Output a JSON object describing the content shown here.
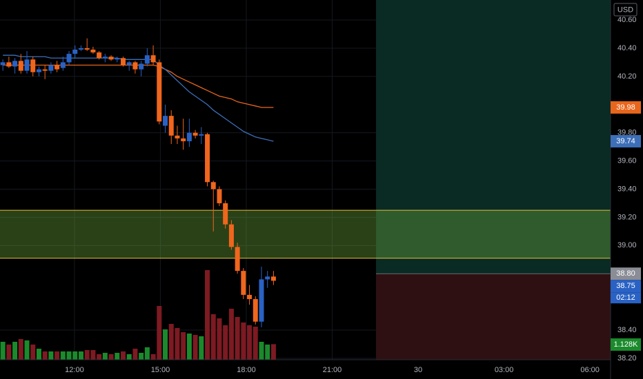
{
  "chart_data": {
    "type": "candlestick",
    "currency": "USD",
    "x": [
      9.5,
      9.71,
      9.92,
      10.13,
      10.34,
      10.55,
      10.76,
      10.97,
      11.18,
      11.39,
      11.6,
      11.81,
      12.02,
      12.23,
      12.44,
      12.65,
      12.86,
      13.07,
      13.28,
      13.49,
      13.7,
      13.91,
      14.12,
      14.33,
      14.54,
      14.75,
      14.96,
      15.17,
      15.38,
      15.59,
      15.8,
      16.01,
      16.22,
      16.43,
      16.64,
      16.85,
      17.06,
      17.27,
      17.48,
      17.69,
      17.9,
      18.11,
      18.32,
      18.53,
      18.74,
      18.95
    ],
    "open": [
      40.28,
      40.3,
      40.27,
      40.31,
      40.24,
      40.32,
      40.23,
      40.25,
      40.24,
      40.28,
      40.26,
      40.3,
      40.36,
      40.39,
      40.4,
      40.39,
      40.37,
      40.33,
      40.34,
      40.32,
      40.33,
      40.28,
      40.3,
      40.25,
      40.29,
      40.35,
      40.3,
      39.85,
      39.92,
      39.78,
      39.76,
      39.74,
      39.8,
      39.78,
      39.79,
      39.45,
      39.4,
      39.3,
      39.15,
      38.99,
      38.82,
      38.65,
      38.62,
      38.46,
      38.76,
      38.78
    ],
    "high": [
      40.32,
      40.34,
      40.33,
      40.36,
      40.38,
      40.34,
      40.27,
      40.28,
      40.3,
      40.31,
      40.34,
      40.38,
      40.42,
      40.42,
      40.47,
      40.41,
      40.38,
      40.36,
      40.35,
      40.34,
      40.34,
      40.31,
      40.31,
      40.31,
      40.4,
      40.42,
      40.32,
      40.0,
      39.96,
      39.85,
      39.9,
      39.9,
      39.82,
      39.84,
      39.8,
      39.46,
      39.42,
      39.32,
      39.18,
      39.02,
      38.84,
      38.72,
      38.64,
      38.85,
      38.82,
      38.82
    ],
    "low": [
      40.24,
      40.26,
      40.22,
      40.22,
      40.22,
      40.2,
      40.2,
      40.18,
      40.22,
      40.23,
      40.24,
      40.28,
      40.33,
      40.38,
      40.38,
      40.36,
      40.32,
      40.3,
      40.31,
      40.3,
      40.27,
      40.24,
      40.22,
      40.2,
      40.27,
      40.28,
      39.86,
      39.8,
      39.72,
      39.72,
      39.68,
      39.7,
      39.76,
      39.72,
      39.42,
      39.1,
      39.28,
      39.12,
      38.97,
      38.8,
      38.62,
      38.58,
      38.44,
      38.42,
      38.7,
      38.72
    ],
    "close": [
      40.3,
      40.27,
      40.31,
      40.24,
      40.32,
      40.23,
      40.25,
      40.24,
      40.28,
      40.25,
      40.3,
      40.36,
      40.39,
      40.4,
      40.39,
      40.37,
      40.33,
      40.34,
      40.32,
      40.33,
      40.28,
      40.3,
      40.25,
      40.29,
      40.35,
      40.3,
      39.88,
      39.92,
      39.78,
      39.76,
      39.74,
      39.8,
      39.78,
      39.79,
      39.45,
      39.4,
      39.3,
      39.15,
      38.99,
      38.82,
      38.65,
      38.62,
      38.46,
      38.76,
      38.78,
      38.75
    ],
    "up_color": "#2962c4",
    "down_color": "#f0661c",
    "volume": {
      "values": [
        1300,
        1100,
        1300,
        1500,
        1400,
        1100,
        800,
        600,
        600,
        600,
        600,
        600,
        600,
        600,
        700,
        700,
        400,
        500,
        400,
        500,
        600,
        400,
        800,
        500,
        900,
        400,
        3900,
        2200,
        2600,
        2300,
        2000,
        1900,
        1800,
        1700,
        6500,
        3300,
        3000,
        2500,
        3700,
        3100,
        2700,
        2500,
        2400,
        1300,
        1100,
        1128
      ],
      "value_labels": [
        null,
        null,
        null,
        null,
        null,
        null,
        null,
        null,
        null,
        null,
        null,
        null,
        null,
        null,
        null,
        null,
        null,
        null,
        null,
        null,
        null,
        null,
        null,
        null,
        null,
        null,
        null,
        null,
        null,
        null,
        null,
        null,
        null,
        null,
        null,
        null,
        null,
        null,
        null,
        null,
        null,
        null,
        null,
        null,
        null,
        "1.128K"
      ],
      "up_color": "#1b8a2c",
      "down_color": "#7d1a22",
      "label_color": "#1b8a2c"
    },
    "ma": [
      {
        "color": "#e8661c",
        "values": [
          40.28,
          40.28,
          40.28,
          40.28,
          40.28,
          40.28,
          40.28,
          40.28,
          40.28,
          40.28,
          40.28,
          40.28,
          40.28,
          40.28,
          40.28,
          40.28,
          40.28,
          40.28,
          40.28,
          40.28,
          40.28,
          40.28,
          40.28,
          40.28,
          40.28,
          40.28,
          40.27,
          40.25,
          40.23,
          40.2,
          40.18,
          40.16,
          40.14,
          40.12,
          40.1,
          40.08,
          40.06,
          40.05,
          40.04,
          40.02,
          40.01,
          40.0,
          39.99,
          39.98,
          39.98,
          39.98
        ]
      },
      {
        "color": "#3d6fb8",
        "values": [
          40.35,
          40.35,
          40.35,
          40.34,
          40.34,
          40.34,
          40.34,
          40.34,
          40.33,
          40.33,
          40.33,
          40.33,
          40.33,
          40.33,
          40.33,
          40.33,
          40.33,
          40.33,
          40.33,
          40.33,
          40.32,
          40.32,
          40.32,
          40.32,
          40.32,
          40.32,
          40.28,
          40.25,
          40.21,
          40.17,
          40.13,
          40.09,
          40.06,
          40.03,
          40.0,
          39.96,
          39.93,
          39.9,
          39.87,
          39.84,
          39.81,
          39.79,
          39.77,
          39.76,
          39.75,
          39.74
        ]
      }
    ],
    "zone": {
      "top": 39.25,
      "bottom": 38.91,
      "color": "#e3c23b"
    },
    "position": {
      "start": 22.53,
      "entry": {
        "value": 38.8,
        "label": "38.80"
      },
      "target": 40.8,
      "stop": 38.15,
      "entry_color": "#8a8d96"
    },
    "countdown": "02:12",
    "xlim": [
      9.4,
      30.72
    ],
    "ylim": [
      38.19,
      40.742
    ],
    "xticks": [
      {
        "value": 12,
        "label": "12:00"
      },
      {
        "value": 15,
        "label": "15:00"
      },
      {
        "value": 18,
        "label": "18:00"
      },
      {
        "value": 21,
        "label": "21:00"
      },
      {
        "value": 24,
        "label": "30"
      },
      {
        "value": 27,
        "label": "03:00"
      },
      {
        "value": 30,
        "label": "06:00"
      }
    ],
    "yticks": [
      {
        "value": 40.6,
        "label": "40.60"
      },
      {
        "value": 40.4,
        "label": "40.40"
      },
      {
        "value": 40.2,
        "label": "40.20"
      },
      {
        "value": 39.8,
        "label": "39.80"
      },
      {
        "value": 39.6,
        "label": "39.60"
      },
      {
        "value": 39.4,
        "label": "39.40"
      },
      {
        "value": 39.2,
        "label": "39.20"
      },
      {
        "value": 39.0,
        "label": "39.00"
      },
      {
        "value": 38.4,
        "label": "38.40"
      },
      {
        "value": 38.2,
        "label": "38.20"
      }
    ],
    "grid": true
  }
}
